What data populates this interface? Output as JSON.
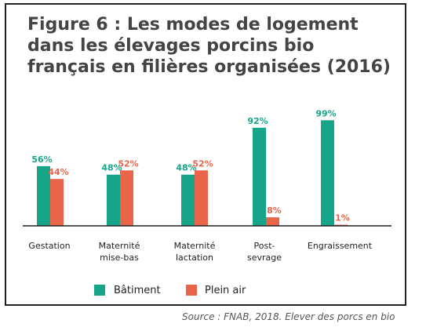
{
  "title": "Figure 6 : Les modes de logement dans les élevages porcins bio français en filières organisées (2016)",
  "source": "Source : FNAB, 2018. Elever des porcs en bio",
  "chart_data": {
    "type": "bar",
    "categories": [
      [
        "Gestation"
      ],
      [
        "Maternité",
        "mise-bas"
      ],
      [
        "Maternité",
        "lactation"
      ],
      [
        "Post-",
        "sevrage"
      ],
      [
        "Engraissement"
      ]
    ],
    "series": [
      {
        "name": "Bâtiment",
        "color": "#17a589",
        "label_color": "#17a589",
        "values": [
          56,
          48,
          48,
          92,
          99
        ],
        "labels": [
          "56%",
          "48%",
          "48%",
          "92%",
          "99%"
        ]
      },
      {
        "name": "Plein air",
        "color": "#e8654a",
        "label_color": "#e8654a",
        "values": [
          44,
          52,
          52,
          8,
          1
        ],
        "labels": [
          "44%",
          "52%",
          "52%",
          "8%",
          "1%"
        ]
      }
    ],
    "ylim": [
      0,
      100
    ],
    "grid": false,
    "legend_position": "bottom"
  }
}
